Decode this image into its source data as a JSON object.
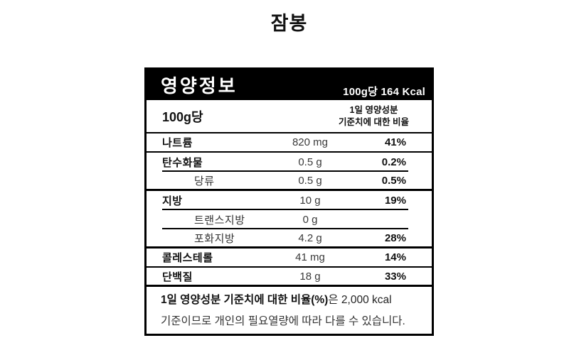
{
  "product_title": "잠봉",
  "colors": {
    "background": "#ffffff",
    "text": "#111111",
    "header_bg": "#000000",
    "header_text": "#ffffff",
    "border": "#000000"
  },
  "label": {
    "header": {
      "title": "영양정보",
      "serving_calories": "100g당 164 Kcal"
    },
    "serving": {
      "label": "100g당",
      "note": "1일 영양성분\n기준치에 대한 비율"
    },
    "rows": [
      {
        "name": "나트륨",
        "amount": "820 mg",
        "percent": "41%",
        "indent": false,
        "separator": "full"
      },
      {
        "name": "탄수화물",
        "amount": "0.5 g",
        "percent": "0.2%",
        "indent": false,
        "separator": "partial"
      },
      {
        "name": "당류",
        "amount": "0.5 g",
        "percent": "0.5%",
        "indent": true,
        "separator": "thick"
      },
      {
        "name": "지방",
        "amount": "10 g",
        "percent": "19%",
        "indent": false,
        "separator": "partial"
      },
      {
        "name": "트랜스지방",
        "amount": "0 g",
        "percent": "",
        "indent": true,
        "separator": "partial"
      },
      {
        "name": "포화지방",
        "amount": "4.2 g",
        "percent": "28%",
        "indent": true,
        "separator": "thick"
      },
      {
        "name": "콜레스테롤",
        "amount": "41 mg",
        "percent": "14%",
        "indent": false,
        "separator": "full"
      },
      {
        "name": "단백질",
        "amount": "18 g",
        "percent": "33%",
        "indent": false,
        "separator": "thick"
      }
    ],
    "footnote": {
      "bold_part": "1일 영양성분 기준치에 대한 비율(%)",
      "regular_part": "은 2,000 kcal",
      "line2": "기준이므로 개인의 필요열량에 따라 다를 수 있습니다."
    }
  }
}
